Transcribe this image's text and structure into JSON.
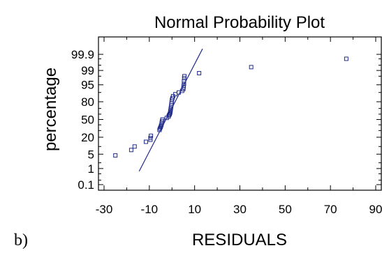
{
  "panel_label": "b)",
  "chart_data": {
    "type": "scatter",
    "title": "Normal Probability Plot",
    "xlabel": "RESIDUALS",
    "ylabel": "percentage",
    "xlim": [
      -30,
      90
    ],
    "x_ticks": [
      "-30",
      "-10",
      "10",
      "30",
      "50",
      "70",
      "90"
    ],
    "y_ticks": [
      "0.1",
      "1",
      "5",
      "20",
      "50",
      "80",
      "95",
      "99",
      "99.9"
    ],
    "y_scale": "normal-probability",
    "grid": false,
    "marker": "open-square",
    "color": "#1f2a8a",
    "fit_line": {
      "x": [
        -14.5,
        13.5
      ],
      "y": [
        0.7,
        99.96
      ]
    },
    "points": [
      {
        "x": -25,
        "y": 4.4
      },
      {
        "x": -18,
        "y": 7.4
      },
      {
        "x": -16.5,
        "y": 10.0
      },
      {
        "x": -11.5,
        "y": 14.5
      },
      {
        "x": -9.5,
        "y": 16.8
      },
      {
        "x": -9.5,
        "y": 19.0
      },
      {
        "x": -9.3,
        "y": 22.0
      },
      {
        "x": -5.5,
        "y": 31.0
      },
      {
        "x": -5.3,
        "y": 33.5
      },
      {
        "x": -5.0,
        "y": 36.0
      },
      {
        "x": -4.8,
        "y": 38.5
      },
      {
        "x": -4.6,
        "y": 41.0
      },
      {
        "x": -4.5,
        "y": 44.0
      },
      {
        "x": -4.4,
        "y": 47.0
      },
      {
        "x": -4.2,
        "y": 50.0
      },
      {
        "x": -2.3,
        "y": 53.0
      },
      {
        "x": -1.5,
        "y": 55.5
      },
      {
        "x": -1.3,
        "y": 58.0
      },
      {
        "x": -1.0,
        "y": 60.0
      },
      {
        "x": -0.8,
        "y": 62.5
      },
      {
        "x": -0.7,
        "y": 65.0
      },
      {
        "x": -0.6,
        "y": 67.5
      },
      {
        "x": -0.5,
        "y": 70.0
      },
      {
        "x": -0.4,
        "y": 72.5
      },
      {
        "x": -0.3,
        "y": 75.0
      },
      {
        "x": -0.2,
        "y": 77.5
      },
      {
        "x": -0.1,
        "y": 80.0
      },
      {
        "x": 0.0,
        "y": 82.5
      },
      {
        "x": 0.2,
        "y": 84.5
      },
      {
        "x": 0.5,
        "y": 86.5
      },
      {
        "x": 1.5,
        "y": 88.5
      },
      {
        "x": 3.0,
        "y": 90.0
      },
      {
        "x": 4.5,
        "y": 91.3
      },
      {
        "x": 5.0,
        "y": 92.5
      },
      {
        "x": 5.1,
        "y": 93.5
      },
      {
        "x": 5.2,
        "y": 94.5
      },
      {
        "x": 5.3,
        "y": 95.5
      },
      {
        "x": 5.3,
        "y": 96.5
      },
      {
        "x": 5.4,
        "y": 97.5
      },
      {
        "x": 5.5,
        "y": 98.0
      },
      {
        "x": 12,
        "y": 98.6
      },
      {
        "x": 35,
        "y": 99.35
      },
      {
        "x": 77,
        "y": 99.8
      }
    ]
  }
}
